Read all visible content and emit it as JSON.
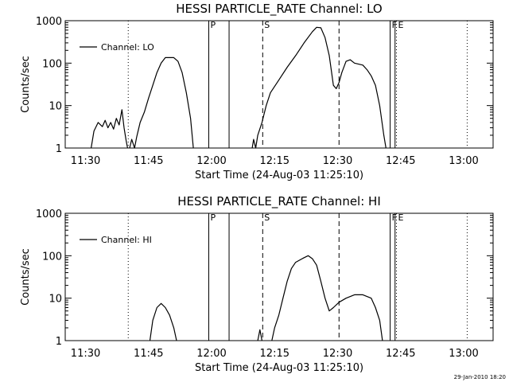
{
  "chart_data": [
    {
      "type": "line",
      "title": "HESSI PARTICLE_RATE Channel: LO",
      "xlabel": "Start Time (24-Aug-03 11:25:10)",
      "ylabel": "Counts/sec",
      "yscale": "log",
      "ylim": [
        1,
        1000
      ],
      "xlim": [
        "11:25:10",
        "13:07:00"
      ],
      "xticks": [
        "11:30",
        "11:45",
        "12:00",
        "12:15",
        "12:30",
        "12:45",
        "13:00"
      ],
      "yticks": [
        "1",
        "10",
        "100",
        "1000"
      ],
      "legend": {
        "position": "top-left",
        "entries": [
          "Channel: LO"
        ]
      },
      "series": [
        {
          "name": "Channel: LO",
          "segments": [
            [
              [
                "11:31:20",
                1
              ],
              [
                "11:32:00",
                2.5
              ],
              [
                "11:33:00",
                4
              ],
              [
                "11:34:00",
                3.2
              ],
              [
                "11:34:40",
                4.5
              ],
              [
                "11:35:20",
                3
              ],
              [
                "11:36:00",
                4
              ],
              [
                "11:36:40",
                2.8
              ],
              [
                "11:37:20",
                5
              ],
              [
                "11:38:00",
                3.5
              ],
              [
                "11:38:40",
                8
              ],
              [
                "11:39:10",
                3
              ],
              [
                "11:39:40",
                1.5
              ],
              [
                "11:40:00",
                1
              ]
            ],
            [
              [
                "11:40:30",
                1
              ],
              [
                "11:41:00",
                1.6
              ],
              [
                "11:41:40",
                1
              ],
              [
                "11:42:10",
                1.8
              ],
              [
                "11:42:30",
                2.5
              ],
              [
                "11:43:00",
                4
              ],
              [
                "11:44:00",
                7
              ],
              [
                "11:45:00",
                15
              ],
              [
                "11:46:00",
                30
              ],
              [
                "11:47:00",
                60
              ],
              [
                "11:48:00",
                100
              ],
              [
                "11:49:00",
                135
              ],
              [
                "11:51:00",
                135
              ],
              [
                "11:52:00",
                110
              ],
              [
                "11:53:00",
                60
              ],
              [
                "11:54:00",
                20
              ],
              [
                "11:55:00",
                5
              ],
              [
                "11:55:40",
                1
              ]
            ],
            [
              [
                "12:09:40",
                1
              ],
              [
                "12:10:00",
                1.6
              ],
              [
                "12:10:30",
                1
              ],
              [
                "12:11:00",
                2
              ],
              [
                "12:12:00",
                4
              ],
              [
                "12:13:00",
                10
              ],
              [
                "12:14:00",
                20
              ],
              [
                "12:16:00",
                40
              ],
              [
                "12:18:00",
                80
              ],
              [
                "12:20:00",
                150
              ],
              [
                "12:22:00",
                300
              ],
              [
                "12:24:00",
                550
              ],
              [
                "12:25:00",
                700
              ],
              [
                "12:26:00",
                680
              ],
              [
                "12:27:00",
                400
              ],
              [
                "12:28:00",
                150
              ],
              [
                "12:29:00",
                30
              ],
              [
                "12:29:40",
                25
              ],
              [
                "12:30:20",
                35
              ],
              [
                "12:31:00",
                60
              ],
              [
                "12:32:00",
                110
              ],
              [
                "12:33:00",
                120
              ],
              [
                "12:34:00",
                100
              ],
              [
                "12:36:00",
                90
              ],
              [
                "12:37:00",
                70
              ],
              [
                "12:38:00",
                50
              ],
              [
                "12:39:00",
                30
              ],
              [
                "12:40:00",
                10
              ],
              [
                "12:41:00",
                2
              ],
              [
                "12:41:30",
                1
              ]
            ]
          ]
        }
      ],
      "markers": [
        {
          "time": "11:40:10",
          "style": "dotted",
          "label": ""
        },
        {
          "time": "11:59:20",
          "style": "solid",
          "label": "P"
        },
        {
          "time": "12:04:10",
          "style": "solid",
          "label": ""
        },
        {
          "time": "12:12:10",
          "style": "dashed",
          "label": "S"
        },
        {
          "time": "12:30:20",
          "style": "dashed",
          "label": ""
        },
        {
          "time": "12:42:30",
          "style": "solid",
          "label": "F"
        },
        {
          "time": "12:43:40",
          "style": "solid",
          "label": ""
        },
        {
          "time": "12:44:00",
          "style": "dotted",
          "label": "E"
        },
        {
          "time": "13:00:50",
          "style": "dotted",
          "label": ""
        }
      ]
    },
    {
      "type": "line",
      "title": "HESSI PARTICLE_RATE Channel: HI",
      "xlabel": "Start Time (24-Aug-03 11:25:10)",
      "ylabel": "Counts/sec",
      "yscale": "log",
      "ylim": [
        1,
        1000
      ],
      "xlim": [
        "11:25:10",
        "13:07:00"
      ],
      "xticks": [
        "11:30",
        "11:45",
        "12:00",
        "12:15",
        "12:30",
        "12:45",
        "13:00"
      ],
      "yticks": [
        "1",
        "10",
        "100",
        "1000"
      ],
      "legend": {
        "position": "top-left",
        "entries": [
          "Channel: HI"
        ]
      },
      "series": [
        {
          "name": "Channel: HI",
          "segments": [
            [
              [
                "11:45:20",
                1
              ],
              [
                "11:46:00",
                3
              ],
              [
                "11:47:00",
                6
              ],
              [
                "11:48:00",
                7.5
              ],
              [
                "11:49:00",
                6
              ],
              [
                "11:50:00",
                4
              ],
              [
                "11:51:00",
                2
              ],
              [
                "11:51:40",
                1
              ]
            ],
            [
              [
                "12:11:00",
                1
              ],
              [
                "12:11:30",
                1.8
              ],
              [
                "12:12:00",
                1
              ]
            ],
            [
              [
                "12:14:20",
                1
              ],
              [
                "12:15:00",
                2
              ],
              [
                "12:16:00",
                4
              ],
              [
                "12:17:00",
                10
              ],
              [
                "12:18:00",
                25
              ],
              [
                "12:19:00",
                50
              ],
              [
                "12:20:00",
                70
              ],
              [
                "12:22:00",
                90
              ],
              [
                "12:23:00",
                100
              ],
              [
                "12:24:00",
                85
              ],
              [
                "12:25:00",
                60
              ],
              [
                "12:26:00",
                25
              ],
              [
                "12:27:00",
                10
              ],
              [
                "12:28:00",
                5
              ],
              [
                "12:29:00",
                6
              ],
              [
                "12:30:20",
                8
              ],
              [
                "12:32:00",
                10
              ],
              [
                "12:34:00",
                12
              ],
              [
                "12:36:00",
                12
              ],
              [
                "12:38:00",
                10
              ],
              [
                "12:39:00",
                6
              ],
              [
                "12:40:00",
                3
              ],
              [
                "12:40:40",
                1
              ]
            ]
          ]
        }
      ],
      "markers": [
        {
          "time": "11:40:10",
          "style": "dotted",
          "label": ""
        },
        {
          "time": "11:59:20",
          "style": "solid",
          "label": "P"
        },
        {
          "time": "12:04:10",
          "style": "solid",
          "label": ""
        },
        {
          "time": "12:12:10",
          "style": "dashed",
          "label": "S"
        },
        {
          "time": "12:30:20",
          "style": "dashed",
          "label": ""
        },
        {
          "time": "12:42:30",
          "style": "solid",
          "label": "F"
        },
        {
          "time": "12:43:40",
          "style": "solid",
          "label": ""
        },
        {
          "time": "12:44:00",
          "style": "dotted",
          "label": "E"
        },
        {
          "time": "13:00:50",
          "style": "dotted",
          "label": ""
        }
      ]
    }
  ],
  "footer": {
    "timestamp": "29-Jan-2010 18:20"
  }
}
